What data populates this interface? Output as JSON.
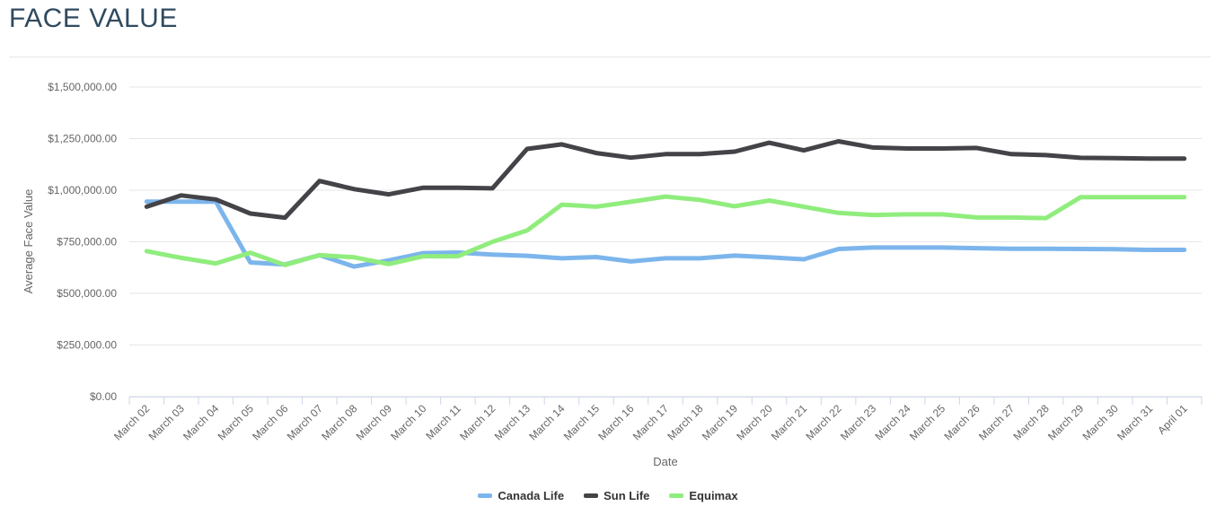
{
  "page": {
    "title": "FACE VALUE"
  },
  "colors": {
    "canada_life": "#7cb5ec",
    "sun_life": "#434348",
    "equimax": "#90ed7d",
    "grid": "#e6e6e6",
    "axis": "#ccd6eb"
  },
  "chart_data": {
    "type": "line",
    "title": "FACE VALUE",
    "xlabel": "Date",
    "ylabel": "Average Face Value",
    "ylim": [
      0,
      1500000
    ],
    "y_ticks": [
      0,
      250000,
      500000,
      750000,
      1000000,
      1250000,
      1500000
    ],
    "y_tick_labels": [
      "$0.00",
      "$250,000.00",
      "$500,000.00",
      "$750,000.00",
      "$1,000,000.00",
      "$1,250,000.00",
      "$1,500,000.00"
    ],
    "legend_position": "bottom-center",
    "categories": [
      "March 02",
      "March 03",
      "March 04",
      "March 05",
      "March 06",
      "March 07",
      "March 08",
      "March 09",
      "March 10",
      "March 11",
      "March 12",
      "March 13",
      "March 14",
      "March 15",
      "March 16",
      "March 17",
      "March 18",
      "March 19",
      "March 20",
      "March 21",
      "March 22",
      "March 23",
      "March 24",
      "March 25",
      "March 26",
      "March 27",
      "March 28",
      "March 29",
      "March 30",
      "March 31",
      "April 01"
    ],
    "series": [
      {
        "name": "Canada Life",
        "color": "#7cb5ec",
        "values": [
          945000,
          945000,
          945000,
          650000,
          640000,
          685000,
          630000,
          660000,
          695000,
          698000,
          688000,
          682000,
          670000,
          676000,
          655000,
          670000,
          670000,
          683000,
          675000,
          665000,
          715000,
          722000,
          722000,
          722000,
          719000,
          716000,
          716000,
          715000,
          714000,
          711000,
          711000
        ]
      },
      {
        "name": "Sun Life",
        "color": "#434348",
        "values": [
          920000,
          975000,
          955000,
          887000,
          867000,
          1045000,
          1005000,
          980000,
          1012000,
          1012000,
          1009000,
          1200000,
          1222000,
          1180000,
          1158000,
          1175000,
          1175000,
          1187000,
          1230000,
          1193000,
          1237000,
          1207000,
          1202000,
          1202000,
          1205000,
          1175000,
          1170000,
          1157000,
          1155000,
          1153000,
          1153000
        ]
      },
      {
        "name": "Equimax",
        "color": "#90ed7d",
        "values": [
          705000,
          672000,
          645000,
          697000,
          638000,
          685000,
          675000,
          642000,
          680000,
          680000,
          750000,
          805000,
          930000,
          920000,
          944000,
          969000,
          953000,
          922000,
          950000,
          920000,
          890000,
          880000,
          883000,
          883000,
          868000,
          868000,
          865000,
          966000,
          966000,
          966000,
          966000
        ]
      }
    ]
  }
}
